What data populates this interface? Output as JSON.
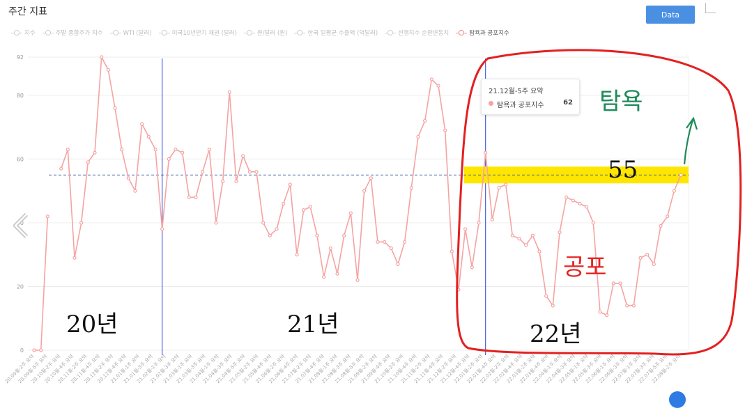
{
  "header": {
    "title": "주간 지표",
    "data_button": "Data"
  },
  "legend": [
    "지수",
    "주말 종합주가 지수",
    "WTI (달러)",
    "미국10년만기 채권 (달러)",
    "원/달러 (원)",
    "한국 일평균 수출액 (억달러)",
    "선행지수 순환변동치",
    "탐욕과 공포지수"
  ],
  "tooltip": {
    "title": "21.12월-5주 요약",
    "series": "탐욕과 공포지수",
    "value": "62"
  },
  "annotations": {
    "y2020": "20년",
    "y2021": "21년",
    "y2022": "22년",
    "level": "55",
    "greed": "탐욕",
    "fear": "공포"
  },
  "colors": {
    "line": "#f5a3a3",
    "divider": "#4a62d8",
    "highlight": "#ffe600",
    "circle": "#e32020",
    "greed": "#1f8a5a",
    "fear": "#e52222"
  },
  "chart_data": {
    "type": "line",
    "series": [
      {
        "name": "탐욕과 공포지수",
        "values": [
          0,
          0,
          42,
          null,
          57,
          63,
          29,
          40,
          59,
          62,
          92,
          88,
          76,
          63,
          54,
          50,
          71,
          67,
          63,
          38,
          60,
          63,
          62,
          48,
          48,
          56,
          63,
          40,
          53,
          81,
          53,
          61,
          56,
          56,
          40,
          36,
          38,
          46,
          52,
          30,
          44,
          45,
          36,
          23,
          32,
          24,
          36,
          43,
          22,
          50,
          54,
          34,
          34,
          32,
          27,
          34,
          51,
          67,
          72,
          85,
          83,
          69,
          31,
          19,
          38,
          26,
          40,
          62,
          41,
          51,
          52,
          36,
          35,
          33,
          36,
          31,
          17,
          14,
          37,
          48,
          47,
          46,
          45,
          40,
          12,
          11,
          21,
          21,
          14,
          14,
          29,
          30,
          27,
          39,
          42,
          50,
          55
        ]
      }
    ],
    "yticks": [
      0,
      20,
      40,
      60,
      80,
      92
    ],
    "ylim": [
      0,
      92
    ],
    "reference_line": 55,
    "year_dividers": [
      19,
      67
    ],
    "x_labels": [
      "20.09월-2주 요약",
      "20.09월-5주 요약",
      "20.10월-2주 요약",
      "20.10월-4주 요약",
      "20.11월-2주 요약",
      "20.11월-4주 요약",
      "20.12월-2주 요약",
      "20.12월-4주 요약",
      "21.01월-1주 요약",
      "21.01월-3주 요약",
      "21.02월-1주 요약",
      "21.02월-3주 요약",
      "21.03월-1주 요약",
      "21.03월-3주 요약",
      "21.04월-1주 요약",
      "21.04월-3주 요약",
      "21.04월-5주 요약",
      "21.05월-2주 요약",
      "21.05월-4주 요약",
      "21.06월-2주 요약",
      "21.06월-4주 요약",
      "21.07월-2주 요약",
      "21.07월-4주 요약",
      "21.08월-1주 요약",
      "21.08월-3주 요약",
      "21.08월-5주 요약",
      "21.09월-2주 요약",
      "21.09월-4주 요약",
      "21.10월-2주 요약",
      "21.10월-4주 요약",
      "21.11월-2주 요약",
      "21.11월-4주 요약",
      "21.12월-2주 요약",
      "21.12월-4주 요약",
      "22.01월-2주 요약",
      "22.01월-4주 요약",
      "22.02월-2주 요약",
      "22.02월-4주 요약",
      "22.03월-2주 요약",
      "22.03월-4주 요약",
      "22.04월-1주 요약",
      "22.04월-3주 요약",
      "22.05월-1주 요약",
      "22.05월-3주 요약",
      "22.06월-1주 요약",
      "22.06월-3주 요약",
      "22.07월-1주 요약",
      "22.07월-3주 요약",
      "22.07월-5주 요약",
      "22.08월-2주 요약"
    ],
    "grid": true,
    "legend_position": "top-left"
  }
}
